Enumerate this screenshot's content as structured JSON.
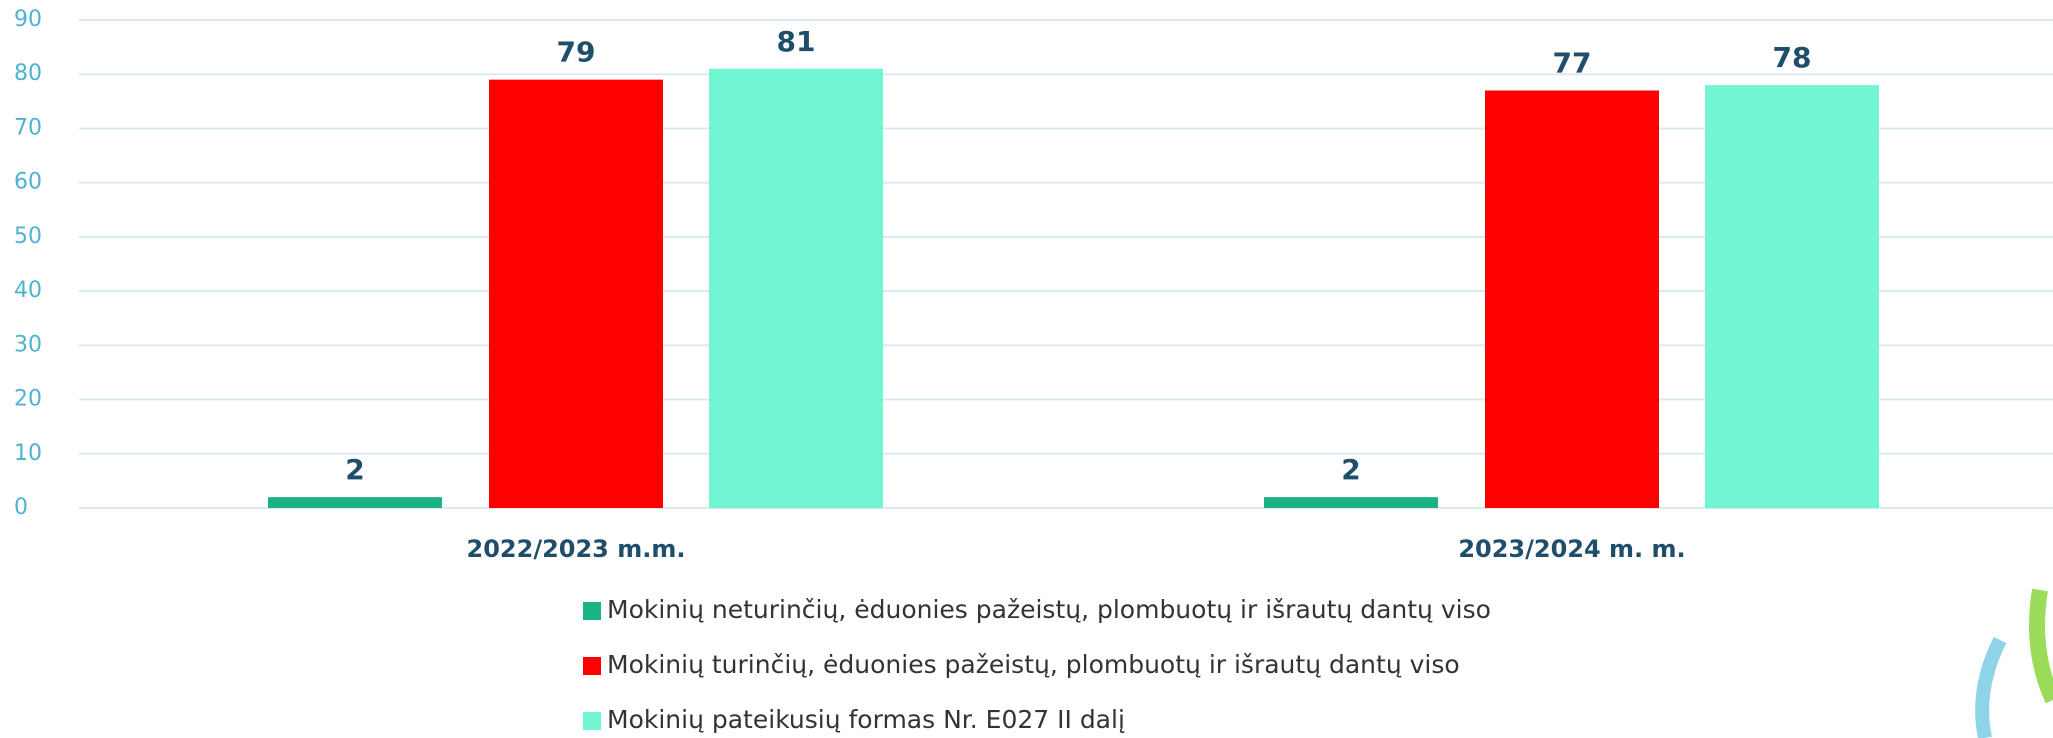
{
  "chart_data": {
    "type": "bar",
    "categories": [
      "2022/2023 m.m.",
      "2023/2024 m. m."
    ],
    "series": [
      {
        "name": "Mokinių neturinčių, ėduonies pažeistų, plombuotų ir išrautų dantų viso",
        "color": "#1bb386",
        "values": [
          2,
          2
        ]
      },
      {
        "name": "Mokinių turinčių, ėduonies pažeistų, plombuotų ir išrautų dantų viso",
        "color": "#ff0000",
        "values": [
          79,
          77
        ]
      },
      {
        "name": "Mokinių pateikusių formas Nr. E027 II dalį",
        "color": "#72f5d2",
        "values": [
          81,
          78
        ]
      }
    ],
    "ylim": [
      0,
      90
    ],
    "yticks": [
      0,
      10,
      20,
      30,
      40,
      50,
      60,
      70,
      80,
      90
    ],
    "grid": true
  }
}
